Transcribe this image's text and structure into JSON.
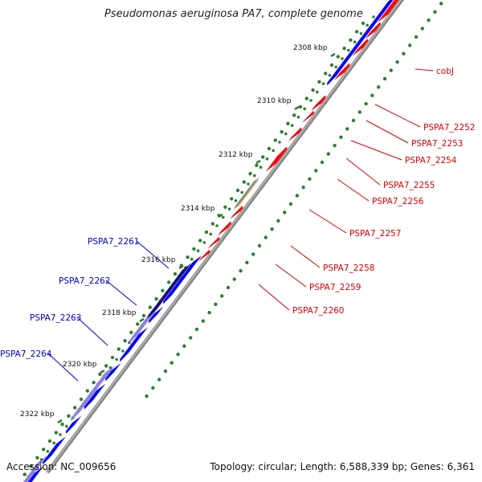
{
  "title": "Pseudomonas aeruginosa PA7, complete genome",
  "accession": "Accession: NC_009656",
  "summary": "Topology: circular; Length: 6,588,339 bp; Genes: 6,361",
  "colors": {
    "backbone": "#8a8a8a",
    "forward_gene": "#ff0000",
    "reverse_gene": "#0000ff",
    "reverse_gene_light": "#8f7fe0",
    "reverse_gene_dark": "#1a107a",
    "special_forward": "#f39a18",
    "special_reverse": "#5b8fd6",
    "tick": "#2f7f2f",
    "forward_label": "#dd0000",
    "reverse_label": "#0000cc"
  },
  "kbp_ticks": [
    "2308 kbp",
    "2310 kbp",
    "2312 kbp",
    "2314 kbp",
    "2316 kbp",
    "2318 kbp",
    "2320 kbp",
    "2322 kbp"
  ],
  "forward_labels": [
    "cobJ",
    "PSPA7_2252",
    "PSPA7_2253",
    "PSPA7_2254",
    "PSPA7_2255",
    "PSPA7_2256",
    "PSPA7_2257",
    "PSPA7_2258",
    "PSPA7_2259",
    "PSPA7_2260"
  ],
  "reverse_labels": [
    "PSPA7_2261",
    "PSPA7_2262",
    "PSPA7_2263",
    "PSPA7_2264"
  ]
}
